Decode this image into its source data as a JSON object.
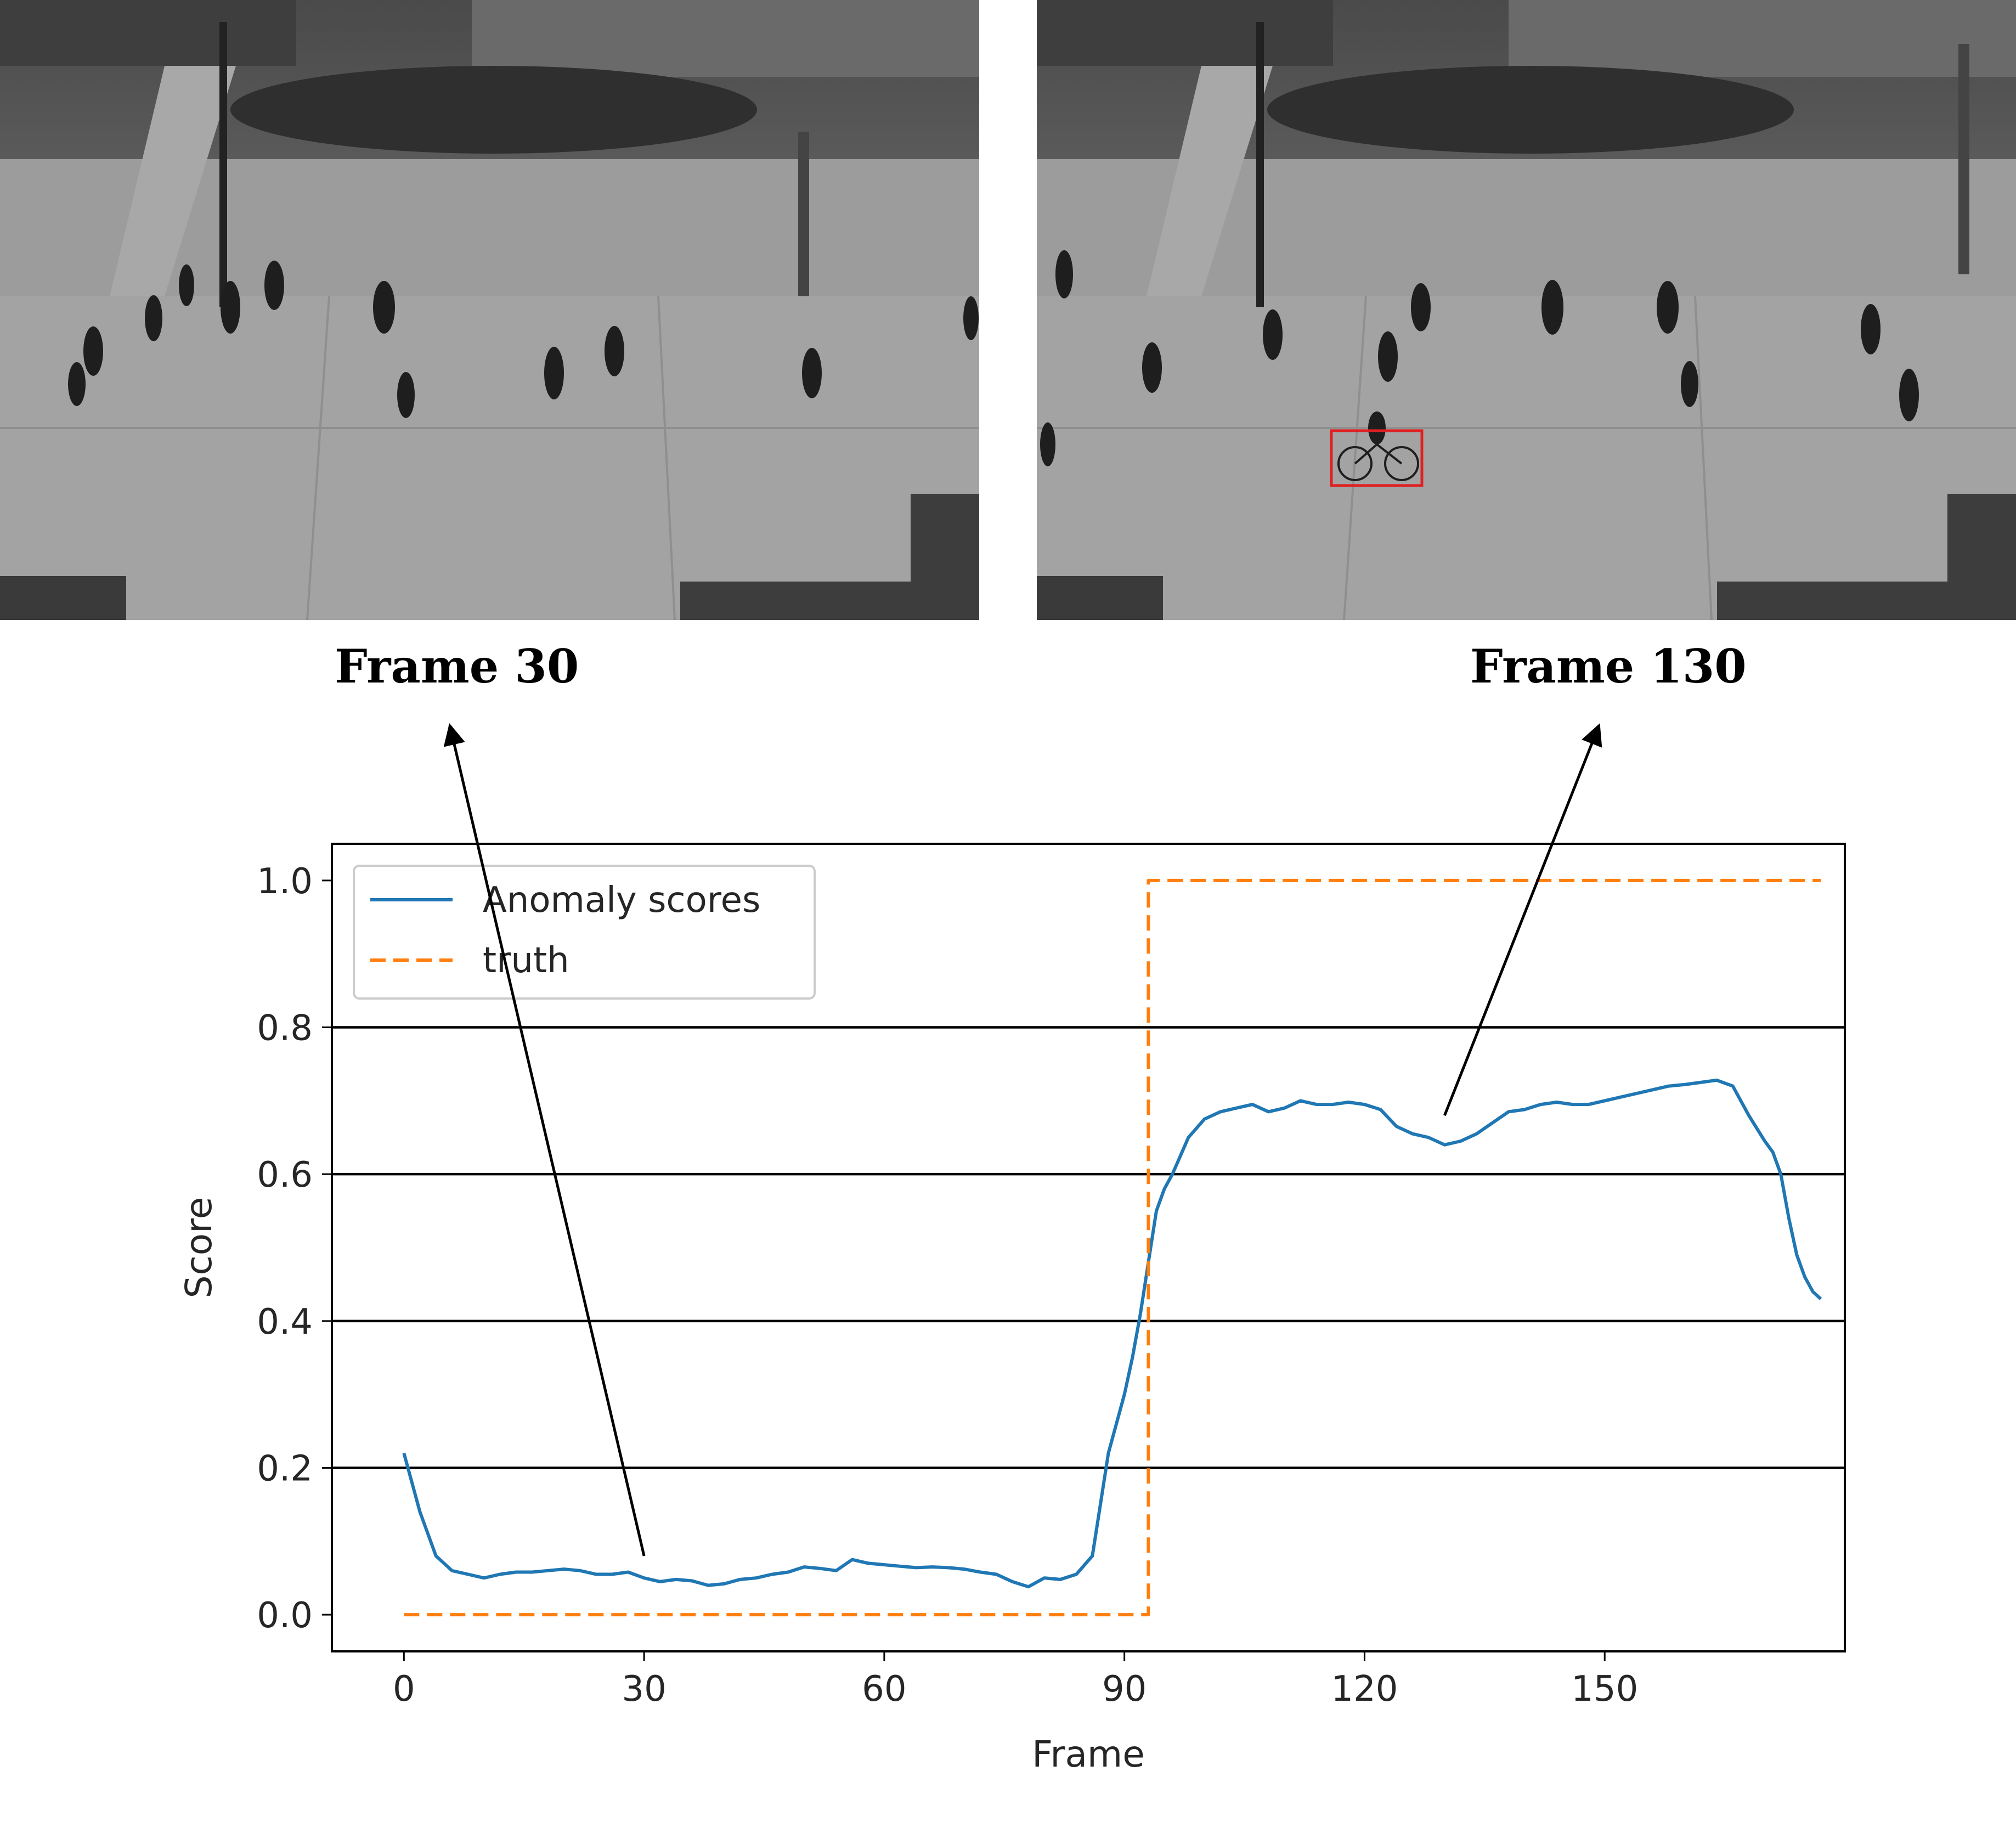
{
  "captions": {
    "left": "Frame 30",
    "right": "Frame 130"
  },
  "frames": {
    "left": {
      "frame": 30,
      "bbox_color": null
    },
    "right": {
      "frame": 130,
      "bbox_color": "#e02020"
    }
  },
  "chart_data": {
    "type": "line",
    "title": "",
    "xlabel": "Frame",
    "ylabel": "Score",
    "xlim": [
      -9,
      180
    ],
    "ylim": [
      -0.05,
      1.05
    ],
    "xticks": [
      0,
      30,
      60,
      90,
      120,
      150
    ],
    "yticks": [
      0.0,
      0.2,
      0.4,
      0.6,
      0.8,
      1.0
    ],
    "xtick_labels": [
      "0",
      "30",
      "60",
      "90",
      "120",
      "150"
    ],
    "ytick_labels": [
      "0.0",
      "0.2",
      "0.4",
      "0.6",
      "0.8",
      "1.0"
    ],
    "grid": "horizontal",
    "legend_position": "upper-left",
    "series": [
      {
        "name": "Anomaly scores",
        "color": "#1f77b4",
        "style": "solid",
        "x": [
          0,
          2,
          4,
          6,
          8,
          10,
          12,
          14,
          16,
          18,
          20,
          22,
          24,
          26,
          28,
          30,
          32,
          34,
          36,
          38,
          40,
          42,
          44,
          46,
          48,
          50,
          52,
          54,
          56,
          58,
          60,
          62,
          64,
          66,
          68,
          70,
          72,
          74,
          76,
          78,
          80,
          82,
          84,
          86,
          87,
          88,
          89,
          90,
          91,
          92,
          93,
          94,
          95,
          96,
          98,
          100,
          102,
          104,
          106,
          108,
          110,
          112,
          114,
          116,
          118,
          120,
          122,
          124,
          126,
          128,
          130,
          132,
          134,
          136,
          138,
          140,
          142,
          144,
          146,
          148,
          150,
          152,
          154,
          156,
          158,
          160,
          162,
          164,
          166,
          168,
          170,
          171,
          172,
          173,
          174,
          175,
          176,
          177
        ],
        "y": [
          0.22,
          0.14,
          0.08,
          0.06,
          0.055,
          0.05,
          0.055,
          0.058,
          0.058,
          0.06,
          0.062,
          0.06,
          0.055,
          0.055,
          0.058,
          0.05,
          0.045,
          0.048,
          0.046,
          0.04,
          0.042,
          0.048,
          0.05,
          0.055,
          0.058,
          0.065,
          0.063,
          0.06,
          0.075,
          0.07,
          0.068,
          0.066,
          0.064,
          0.065,
          0.064,
          0.062,
          0.058,
          0.055,
          0.045,
          0.038,
          0.05,
          0.048,
          0.055,
          0.08,
          0.15,
          0.22,
          0.26,
          0.3,
          0.35,
          0.41,
          0.48,
          0.55,
          0.58,
          0.6,
          0.65,
          0.675,
          0.685,
          0.69,
          0.695,
          0.685,
          0.69,
          0.7,
          0.695,
          0.695,
          0.698,
          0.695,
          0.688,
          0.665,
          0.655,
          0.65,
          0.64,
          0.645,
          0.655,
          0.67,
          0.685,
          0.688,
          0.695,
          0.698,
          0.695,
          0.695,
          0.7,
          0.705,
          0.71,
          0.715,
          0.72,
          0.722,
          0.725,
          0.728,
          0.72,
          0.68,
          0.645,
          0.63,
          0.6,
          0.54,
          0.49,
          0.46,
          0.44,
          0.43
        ]
      },
      {
        "name": "truth",
        "color": "#ff7f0e",
        "style": "dashed",
        "x": [
          0,
          93,
          93,
          177
        ],
        "y": [
          0,
          0,
          1,
          1
        ]
      }
    ],
    "annotations": [
      {
        "label": "Frame 30",
        "points_to": [
          30,
          0.08
        ]
      },
      {
        "label": "Frame 130",
        "points_to": [
          130,
          0.68
        ]
      }
    ]
  }
}
